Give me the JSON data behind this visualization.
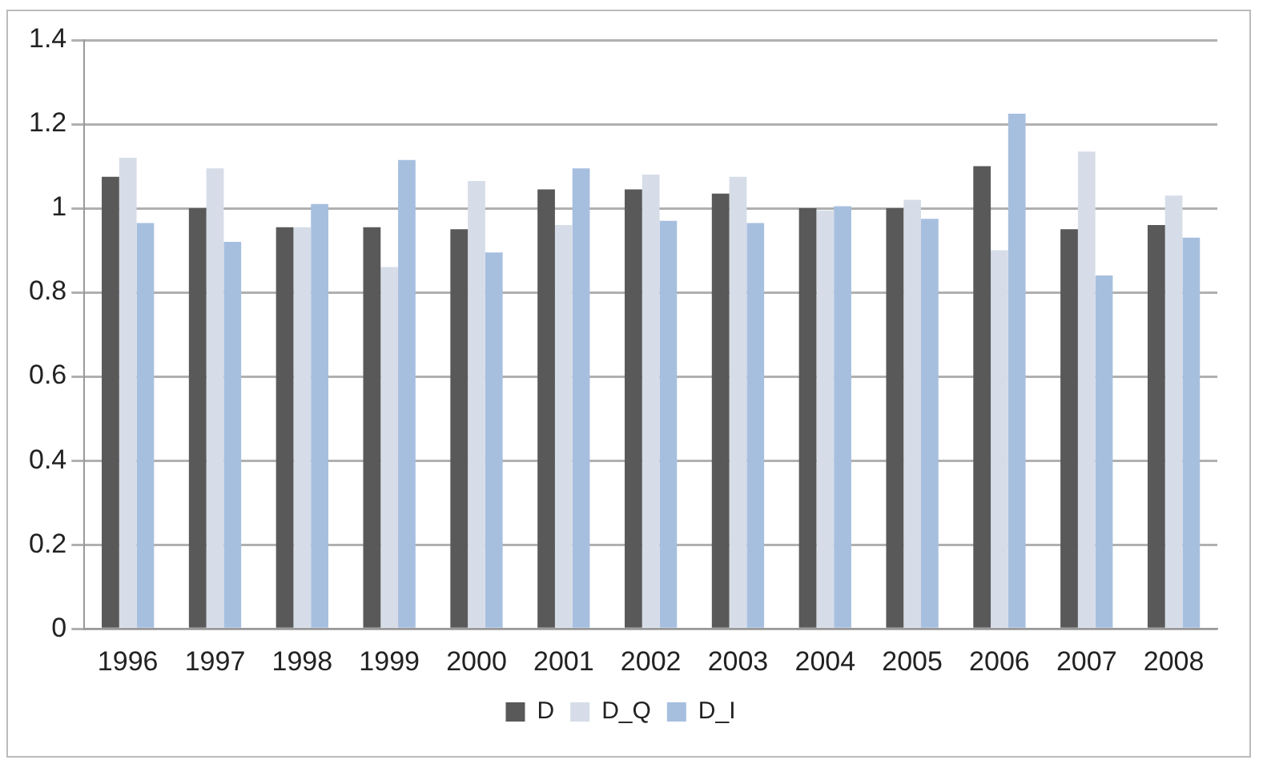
{
  "chart_data": {
    "type": "bar",
    "categories": [
      "1996",
      "1997",
      "1998",
      "1999",
      "2000",
      "2001",
      "2002",
      "2003",
      "2004",
      "2005",
      "2006",
      "2007",
      "2008"
    ],
    "series": [
      {
        "name": "D",
        "color": "#595959",
        "values": [
          1.075,
          1.0,
          0.955,
          0.955,
          0.95,
          1.045,
          1.045,
          1.035,
          1.0,
          1.0,
          1.1,
          0.95,
          0.96
        ]
      },
      {
        "name": "D_Q",
        "color": "#d6dde8",
        "values": [
          1.12,
          1.095,
          0.955,
          0.86,
          1.065,
          0.96,
          1.08,
          1.075,
          0.995,
          1.02,
          0.9,
          1.135,
          1.03
        ]
      },
      {
        "name": "D_I",
        "color": "#a7bfdf",
        "values": [
          0.965,
          0.92,
          1.01,
          1.115,
          0.895,
          1.095,
          0.97,
          0.965,
          1.005,
          0.975,
          1.225,
          0.84,
          0.93
        ]
      }
    ],
    "ylim": [
      0,
      1.4
    ],
    "yticks": [
      0,
      0.2,
      0.4,
      0.6,
      0.8,
      1,
      1.2,
      1.4
    ],
    "grid": "y",
    "legend": "bottom"
  }
}
